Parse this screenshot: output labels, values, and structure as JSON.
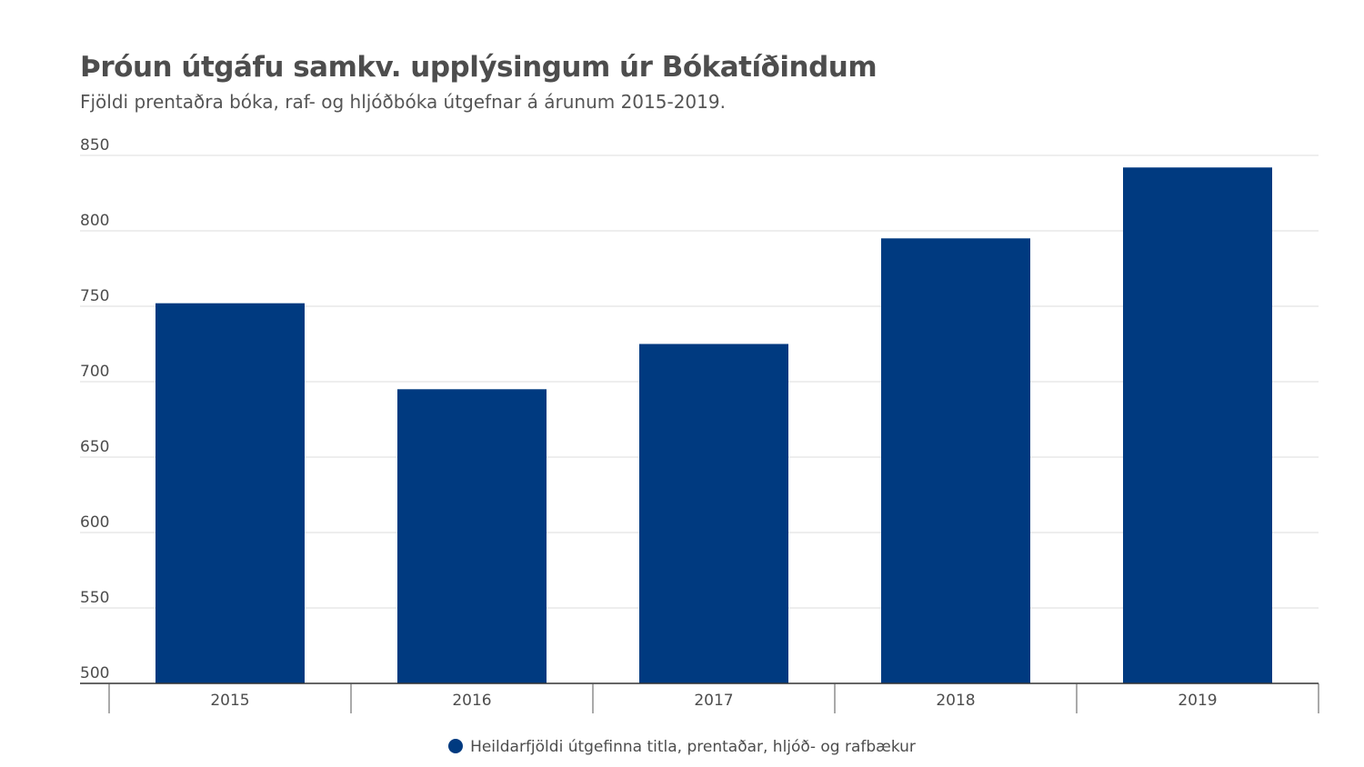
{
  "chart_data": {
    "type": "bar",
    "title": "Þróun útgáfu samkv. upplýsingum úr Bókatíðindum",
    "subtitle": "Fjöldi prentaðra bóka, raf- og hljóðbóka útgefnar á árunum 2015-2019.",
    "categories": [
      "2015",
      "2016",
      "2017",
      "2018",
      "2019"
    ],
    "series": [
      {
        "name": "Heildarfjöldi útgefinna titla, prentaðar, hljóð- og rafbækur",
        "values": [
          752,
          695,
          725,
          795,
          842
        ],
        "color": "#003a80"
      }
    ],
    "ylim": [
      500,
      850
    ],
    "yticks": [
      "500",
      "550",
      "600",
      "650",
      "700",
      "750",
      "800",
      "850"
    ],
    "grid": true,
    "legend_position": "bottom-center",
    "xlabel": "",
    "ylabel": ""
  }
}
